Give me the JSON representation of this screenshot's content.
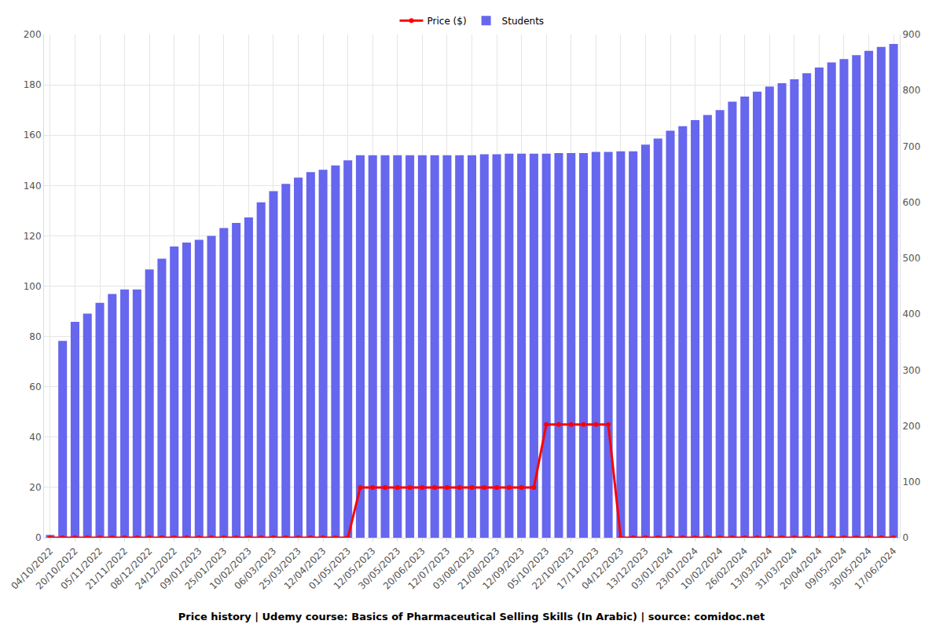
{
  "chart_data": {
    "type": "bar",
    "title": "Price history | Udemy course: Basics of Pharmaceutical Selling Skills (In Arabic) | source: comidoc.net",
    "categories": [
      "04/10/2022",
      null,
      "20/10/2022",
      null,
      "05/11/2022",
      null,
      "21/11/2022",
      null,
      "08/12/2022",
      null,
      "24/12/2022",
      null,
      "09/01/2023",
      null,
      "25/01/2023",
      null,
      "10/02/2023",
      null,
      "06/03/2023",
      null,
      "25/03/2023",
      null,
      "12/04/2023",
      null,
      "01/05/2023",
      null,
      "12/05/2023",
      null,
      "30/05/2023",
      null,
      "20/06/2023",
      null,
      "12/07/2023",
      null,
      "03/08/2023",
      null,
      "21/08/2023",
      null,
      "12/09/2023",
      null,
      "05/10/2023",
      null,
      "22/10/2023",
      null,
      "17/11/2023",
      null,
      "04/12/2023",
      null,
      "13/12/2023",
      null,
      "03/01/2024",
      null,
      "23/01/2024",
      null,
      "10/02/2024",
      null,
      "26/02/2024",
      null,
      "13/03/2024",
      null,
      "31/03/2024",
      null,
      "20/04/2024",
      null,
      "09/05/2024",
      null,
      "30/05/2024",
      null,
      "17/06/2024"
    ],
    "series": [
      {
        "name": "Price ($)",
        "type": "line",
        "color": "#ff0000",
        "marker": "circle",
        "values": [
          0,
          0,
          0,
          0,
          0,
          0,
          0,
          0,
          0,
          0,
          0,
          0,
          0,
          0,
          0,
          0,
          0,
          0,
          0,
          0,
          0,
          0,
          0,
          0,
          0,
          20,
          20,
          20,
          20,
          20,
          20,
          20,
          20,
          20,
          20,
          20,
          20,
          20,
          20,
          20,
          45,
          45,
          45,
          45,
          45,
          45,
          0,
          0,
          0,
          0,
          0,
          0,
          0,
          0,
          0,
          0,
          0,
          0,
          0,
          0,
          0,
          0,
          0,
          0,
          0,
          0,
          0,
          0,
          0
        ]
      },
      {
        "name": "Students",
        "type": "bar",
        "color": "#6666ee",
        "axis": "y2",
        "values": [
          5,
          352,
          386,
          401,
          420,
          436,
          444,
          444,
          480,
          499,
          521,
          528,
          533,
          540,
          554,
          563,
          573,
          600,
          620,
          633,
          644,
          654,
          658,
          666,
          675,
          684,
          684,
          684,
          684,
          684,
          684,
          684,
          684,
          684,
          684,
          686,
          686,
          687,
          687,
          687,
          687,
          688,
          688,
          688,
          690,
          690,
          691,
          691,
          703,
          714,
          728,
          736,
          747,
          756,
          765,
          780,
          789,
          798,
          807,
          813,
          820,
          831,
          841,
          850,
          856,
          863,
          871,
          878,
          883
        ]
      }
    ],
    "ylim": [
      0,
      200
    ],
    "yticks": [
      0,
      20,
      40,
      60,
      80,
      100,
      120,
      140,
      160,
      180,
      200
    ],
    "y2lim": [
      0,
      900
    ],
    "y2ticks": [
      0,
      100,
      200,
      300,
      400,
      500,
      600,
      700,
      800,
      900
    ],
    "grid": true,
    "legend": "top"
  }
}
